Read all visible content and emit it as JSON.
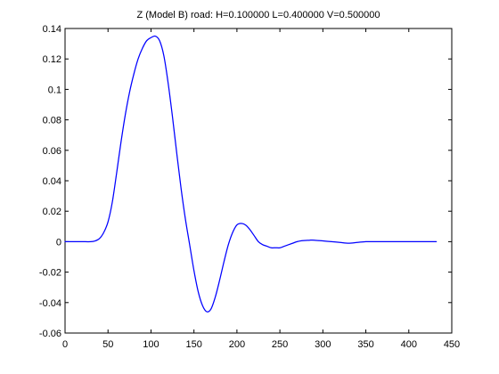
{
  "chart_data": {
    "type": "line",
    "title": "Z (Model B) road: H=0.100000 L=0.400000 V=0.500000",
    "xlabel": "",
    "ylabel": "",
    "xlim": [
      0,
      450
    ],
    "ylim": [
      -0.06,
      0.14
    ],
    "xticks": [
      0,
      50,
      100,
      150,
      200,
      250,
      300,
      350,
      400,
      450
    ],
    "xtick_labels": [
      "0",
      "50",
      "100",
      "150",
      "200",
      "250",
      "300",
      "350",
      "400",
      "450"
    ],
    "yticks": [
      -0.06,
      -0.04,
      -0.02,
      0,
      0.02,
      0.04,
      0.06,
      0.08,
      0.1,
      0.12,
      0.14
    ],
    "ytick_labels": [
      "-0.06",
      "-0.04",
      "-0.02",
      "0",
      "0.02",
      "0.04",
      "0.06",
      "0.08",
      "0.1",
      "0.12",
      "0.14"
    ],
    "grid": false,
    "legend": "none",
    "colors": {
      "line": "#0000ff",
      "axis": "#000000",
      "background": "#ffffff"
    },
    "series": [
      {
        "x": [
          0,
          10,
          20,
          30,
          35,
          40,
          45,
          50,
          55,
          60,
          65,
          70,
          75,
          80,
          85,
          90,
          95,
          100,
          105,
          110,
          115,
          120,
          125,
          130,
          135,
          140,
          145,
          150,
          155,
          160,
          165,
          170,
          175,
          180,
          185,
          190,
          195,
          200,
          205,
          210,
          215,
          220,
          225,
          230,
          235,
          240,
          245,
          250,
          255,
          260,
          265,
          270,
          275,
          280,
          285,
          290,
          300,
          310,
          320,
          330,
          340,
          350,
          360,
          380,
          400,
          420,
          432
        ],
        "y": [
          0,
          0,
          0,
          0,
          0.0005,
          0.002,
          0.006,
          0.013,
          0.026,
          0.045,
          0.065,
          0.083,
          0.098,
          0.11,
          0.12,
          0.127,
          0.132,
          0.134,
          0.135,
          0.132,
          0.122,
          0.104,
          0.082,
          0.058,
          0.035,
          0.015,
          -0.002,
          -0.019,
          -0.033,
          -0.042,
          -0.046,
          -0.044,
          -0.036,
          -0.025,
          -0.013,
          -0.002,
          0.006,
          0.011,
          0.012,
          0.011,
          0.008,
          0.004,
          0,
          -0.002,
          -0.003,
          -0.004,
          -0.004,
          -0.004,
          -0.003,
          -0.002,
          -0.001,
          0,
          0.0006,
          0.0008,
          0.001,
          0.001,
          0.0005,
          0,
          -0.0005,
          -0.001,
          -0.0005,
          0,
          0,
          0,
          0,
          0,
          0
        ]
      }
    ]
  }
}
